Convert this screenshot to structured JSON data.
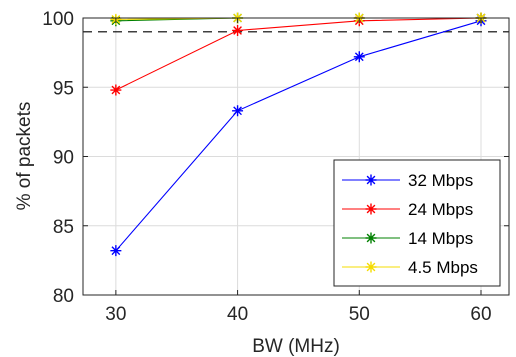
{
  "chart_data": {
    "type": "line",
    "title": "",
    "xlabel": "BW (MHz)",
    "ylabel": "% of packets",
    "x": [
      30,
      40,
      50,
      60
    ],
    "xlim": [
      27.3,
      62.3
    ],
    "ylim": [
      80,
      100
    ],
    "xticks": [
      "30",
      "40",
      "50",
      "60"
    ],
    "yticks": [
      "80",
      "85",
      "90",
      "95",
      "100"
    ],
    "grid": true,
    "reference_line": {
      "y": 99,
      "style": "dashed",
      "color": "#000000"
    },
    "legend_position": "lower-right",
    "marker": "asterisk",
    "series": [
      {
        "name": "32 Mbps",
        "color": "#0000ff",
        "values": [
          83.2,
          93.3,
          97.2,
          99.8
        ]
      },
      {
        "name": "24 Mbps",
        "color": "#ff0000",
        "values": [
          94.8,
          99.1,
          99.8,
          100
        ]
      },
      {
        "name": "14 Mbps",
        "color": "#008000",
        "values": [
          99.8,
          100,
          100,
          100
        ]
      },
      {
        "name": "4.5 Mbps",
        "color": "#f5dc00",
        "values": [
          99.9,
          100,
          100,
          100
        ]
      }
    ]
  }
}
